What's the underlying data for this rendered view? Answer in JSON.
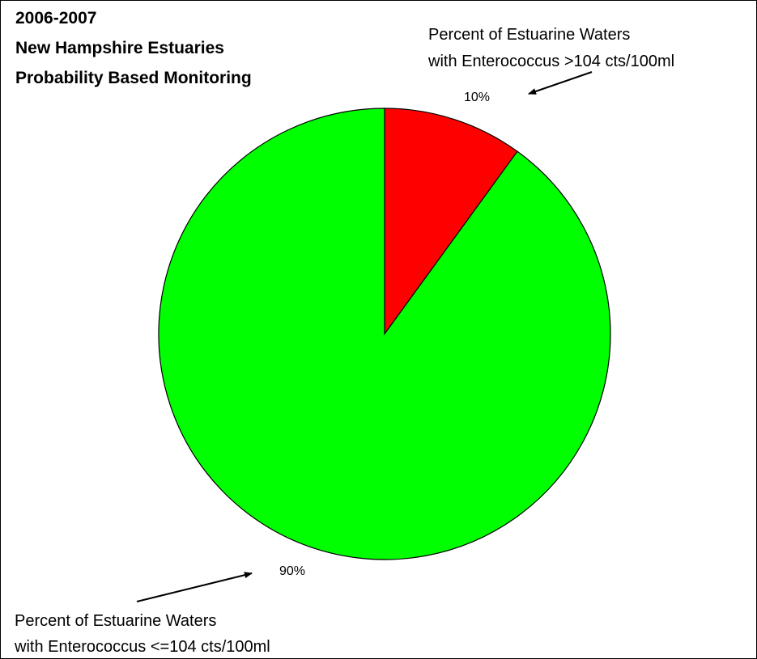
{
  "chart_data": {
    "type": "pie",
    "title_lines": [
      "2006-2007",
      "New Hampshire Estuaries",
      "Probability Based Monitoring"
    ],
    "slices": [
      {
        "label": "Percent of Estuarine Waters with Enterococcus >104 cts/100ml",
        "label_lines": [
          "Percent of Estuarine Waters",
          "with Enterococcus >104 cts/100ml"
        ],
        "value": 10,
        "value_label": "10%",
        "color": "#ff0000"
      },
      {
        "label": "Percent of Estuarine Waters with Enterococcus <=104 cts/100ml",
        "label_lines": [
          "Percent of Estuarine Waters",
          "with Enterococcus <=104 cts/100ml"
        ],
        "value": 90,
        "value_label": "90%",
        "color": "#00ff00"
      }
    ]
  }
}
